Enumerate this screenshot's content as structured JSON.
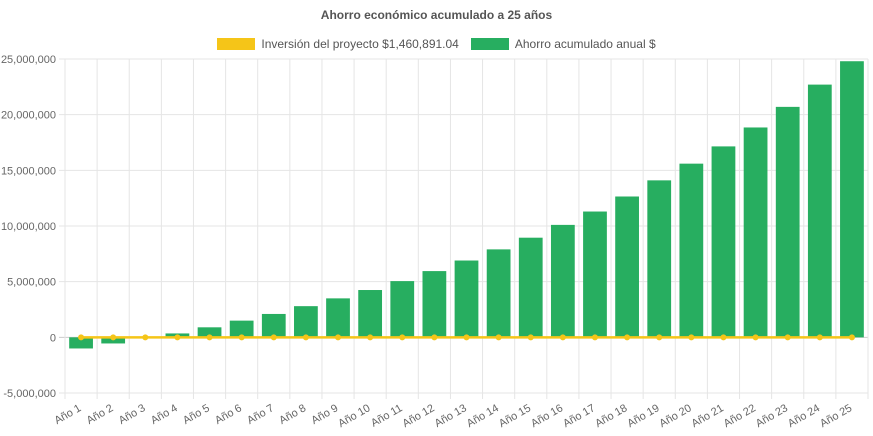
{
  "colors": {
    "investment": "#f5c518",
    "savings": "#27ae60",
    "grid": "#e5e5e5",
    "zero_line": "#cccccc"
  },
  "chart_data": {
    "type": "bar",
    "title": "Ahorro económico acumulado a 25 años",
    "categories": [
      "Año 1",
      "Año 2",
      "Año 3",
      "Año 4",
      "Año 5",
      "Año 6",
      "Año 7",
      "Año 8",
      "Año 9",
      "Año 10",
      "Año 11",
      "Año 12",
      "Año 13",
      "Año 14",
      "Año 15",
      "Año 16",
      "Año 17",
      "Año 18",
      "Año 19",
      "Año 20",
      "Año 21",
      "Año 22",
      "Año 23",
      "Año 24",
      "Año 25"
    ],
    "series": [
      {
        "name": "Inversión del proyecto $1,460,891.04",
        "type": "line",
        "color": "#f5c518",
        "values": [
          0,
          0,
          0,
          0,
          0,
          0,
          0,
          0,
          0,
          0,
          0,
          0,
          0,
          0,
          0,
          0,
          0,
          0,
          0,
          0,
          0,
          0,
          0,
          0,
          0
        ]
      },
      {
        "name": "Ahorro acumulado anual $",
        "type": "bar",
        "color": "#27ae60",
        "values": [
          -1000000,
          -550000,
          -50000,
          350000,
          900000,
          1500000,
          2100000,
          2800000,
          3500000,
          4250000,
          5050000,
          5950000,
          6900000,
          7900000,
          8950000,
          10100000,
          11300000,
          12650000,
          14100000,
          15600000,
          17150000,
          18850000,
          20700000,
          22700000,
          24800000
        ]
      }
    ],
    "ylim": [
      -5000000,
      25000000
    ],
    "yticks": [
      "25,000,000",
      "20,000,000",
      "15,000,000",
      "10,000,000",
      "5,000,000",
      "0",
      "-5,000,000"
    ],
    "ytick_values": [
      25000000,
      20000000,
      15000000,
      10000000,
      5000000,
      0,
      -5000000
    ],
    "grid": true,
    "legend_position": "top"
  }
}
